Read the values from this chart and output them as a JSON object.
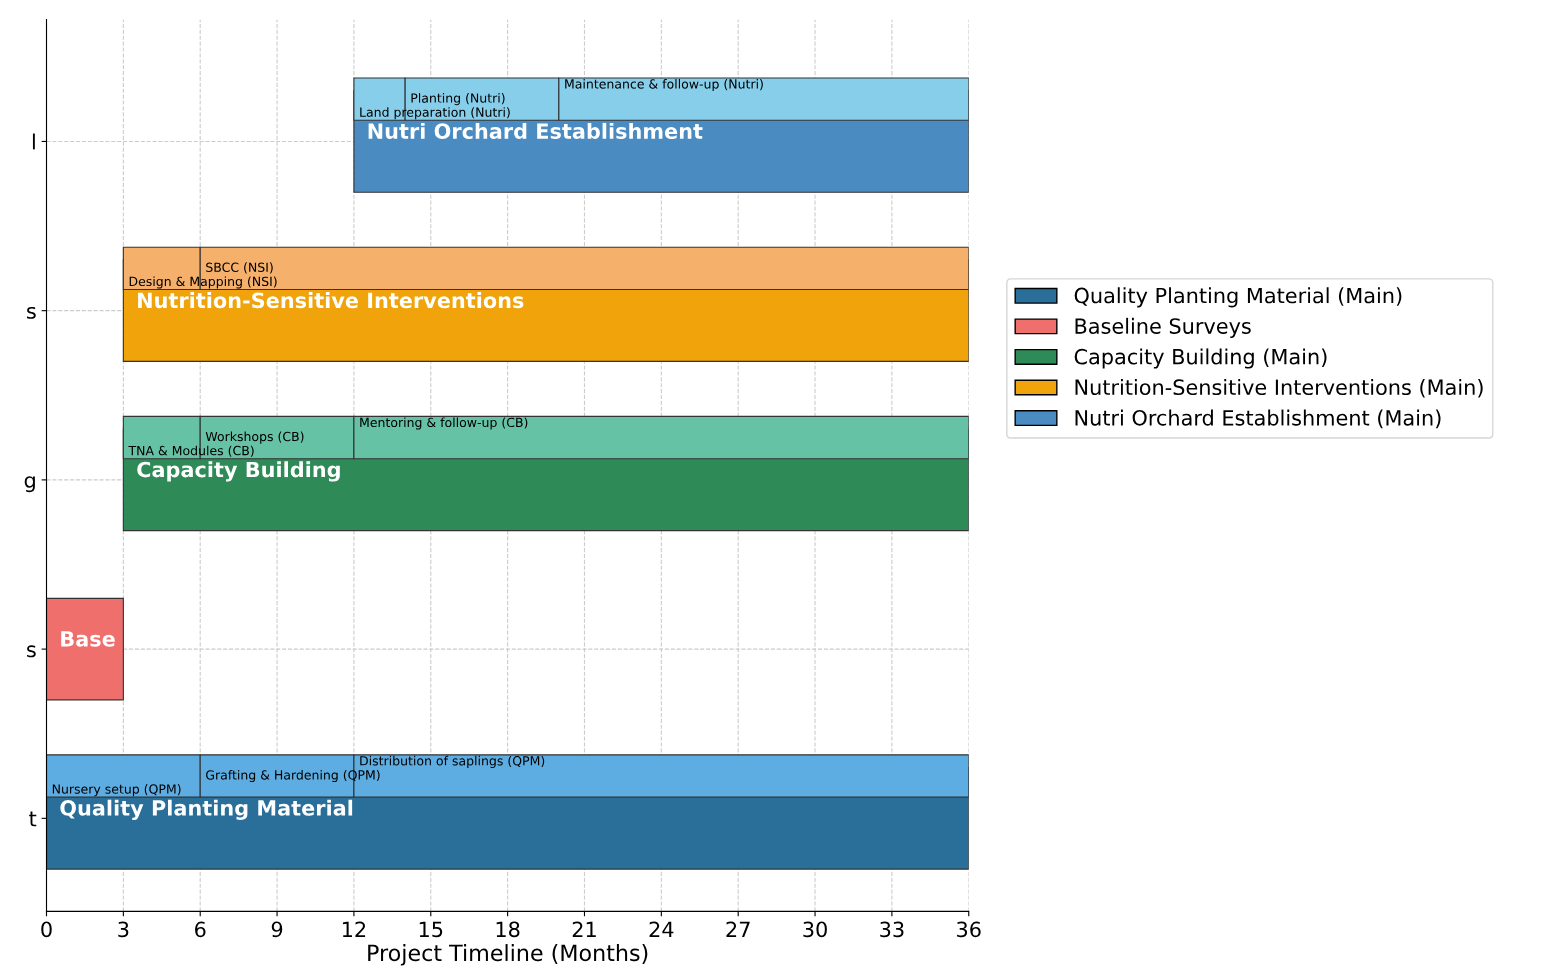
{
  "chart_data": {
    "type": "bar",
    "orientation": "horizontal",
    "xlabel": "Project Timeline (Months)",
    "categories": [
      "l",
      "s",
      "g",
      "s",
      "t"
    ],
    "xlim": [
      0,
      36
    ],
    "xticks": [
      0,
      3,
      6,
      9,
      12,
      15,
      18,
      21,
      24,
      27,
      30,
      33,
      36
    ],
    "grid": true,
    "legend": "right",
    "series": [
      {
        "name": "Quality Planting Material (Main)",
        "color": "#2a6f9a",
        "base": [
          null,
          null,
          null,
          null,
          0
        ],
        "values": [
          null,
          null,
          null,
          null,
          36
        ],
        "value_labels": [
          null,
          null,
          null,
          null,
          "Quality Planting Material"
        ]
      },
      {
        "name": "Baseline Surveys",
        "color": "#ef6f6c",
        "base": [
          null,
          null,
          null,
          0,
          null
        ],
        "values": [
          null,
          null,
          null,
          3,
          null
        ],
        "value_labels": [
          null,
          null,
          null,
          "Base",
          null
        ]
      },
      {
        "name": "Capacity Building (Main)",
        "color": "#2e8b57",
        "base": [
          null,
          null,
          3,
          null,
          null
        ],
        "values": [
          null,
          null,
          33,
          null,
          null
        ],
        "value_labels": [
          null,
          null,
          "Capacity Building",
          null,
          null
        ]
      },
      {
        "name": "Nutrition-Sensitive Interventions (Main)",
        "color": "#f0a30a",
        "base": [
          null,
          3,
          null,
          null,
          null
        ],
        "values": [
          null,
          33,
          null,
          null,
          null
        ],
        "value_labels": [
          null,
          "Nutrition-Sensitive Interventions",
          null,
          null,
          null
        ]
      },
      {
        "name": "Nutri Orchard Establishment (Main)",
        "color": "#4a8bc2",
        "base": [
          12,
          null,
          null,
          null,
          null
        ],
        "values": [
          24,
          null,
          null,
          null,
          null
        ],
        "value_labels": [
          "Nutri Orchard Establishment",
          null,
          null,
          null,
          null
        ]
      },
      {
        "colors": [
          "#87ceeb",
          "#f5b06b",
          "#66c2a5",
          null,
          "#5dade2"
        ],
        "base": [
          12,
          3,
          3,
          null,
          0
        ],
        "values": [
          2,
          3,
          3,
          null,
          6
        ],
        "value_labels": [
          "Land preparation (Nutri)",
          "Design & Mapping (NSI)",
          "TNA & Modules (CB)",
          null,
          "Nursery setup (QPM)"
        ]
      },
      {
        "colors": [
          "#87ceeb",
          "#f5b06b",
          "#66c2a5",
          null,
          "#5dade2"
        ],
        "base": [
          14,
          6,
          6,
          null,
          6
        ],
        "values": [
          6,
          30,
          6,
          null,
          6
        ],
        "value_labels": [
          "Planting (Nutri)",
          "SBCC (NSI)",
          "Workshops (CB)",
          null,
          "Grafting & Hardening (QPM)"
        ]
      },
      {
        "colors": [
          "#87ceeb",
          null,
          "#66c2a5",
          null,
          "#5dade2"
        ],
        "base": [
          20,
          null,
          12,
          null,
          12
        ],
        "values": [
          16,
          null,
          24,
          null,
          24
        ],
        "value_labels": [
          "Maintenance & follow-up (Nutri)",
          null,
          "Mentoring & follow-up (CB)",
          null,
          "Distribution of saplings (QPM)"
        ]
      }
    ]
  }
}
